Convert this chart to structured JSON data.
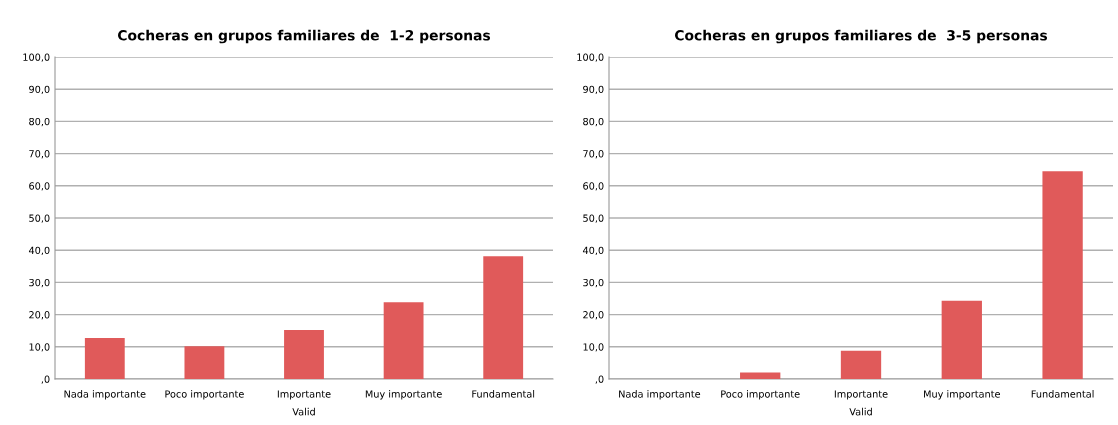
{
  "chart_data": [
    {
      "type": "bar",
      "title": "Cocheras en grupos familiares de  1-2 personas",
      "xlabel": "Valid",
      "categories": [
        "Nada importante",
        "Poco importante",
        "Importante",
        "Muy importante",
        "Fundamental"
      ],
      "values": [
        12.7,
        10.2,
        15.2,
        23.8,
        38.1
      ],
      "color": "#e05a5a",
      "ylim": [
        0,
        100
      ],
      "yticks": [
        {
          "value": 0,
          "label": ",0"
        },
        {
          "value": 10,
          "label": "10,0"
        },
        {
          "value": 20,
          "label": "20,0"
        },
        {
          "value": 30,
          "label": "30,0"
        },
        {
          "value": 40,
          "label": "40,0"
        },
        {
          "value": 50,
          "label": "50,0"
        },
        {
          "value": 60,
          "label": "60,0"
        },
        {
          "value": 70,
          "label": "70,0"
        },
        {
          "value": 80,
          "label": "80,0"
        },
        {
          "value": 90,
          "label": "90,0"
        },
        {
          "value": 100,
          "label": "100,0"
        }
      ],
      "grid": "y"
    },
    {
      "type": "bar",
      "title": "Cocheras en grupos familiares de  3-5 personas",
      "xlabel": "Valid",
      "categories": [
        "Nada importante",
        "Poco importante",
        "Importante",
        "Muy importante",
        "Fundamental"
      ],
      "values": [
        0,
        2.0,
        8.8,
        24.3,
        64.5
      ],
      "color": "#e05a5a",
      "ylim": [
        0,
        100
      ],
      "yticks": [
        {
          "value": 0,
          "label": ",0"
        },
        {
          "value": 10,
          "label": "10,0"
        },
        {
          "value": 20,
          "label": "20,0"
        },
        {
          "value": 30,
          "label": "30,0"
        },
        {
          "value": 40,
          "label": "40,0"
        },
        {
          "value": 50,
          "label": "50,0"
        },
        {
          "value": 60,
          "label": "60,0"
        },
        {
          "value": 70,
          "label": "70,0"
        },
        {
          "value": 80,
          "label": "80,0"
        },
        {
          "value": 90,
          "label": "90,0"
        },
        {
          "value": 100,
          "label": "100,0"
        }
      ],
      "grid": "y"
    }
  ]
}
